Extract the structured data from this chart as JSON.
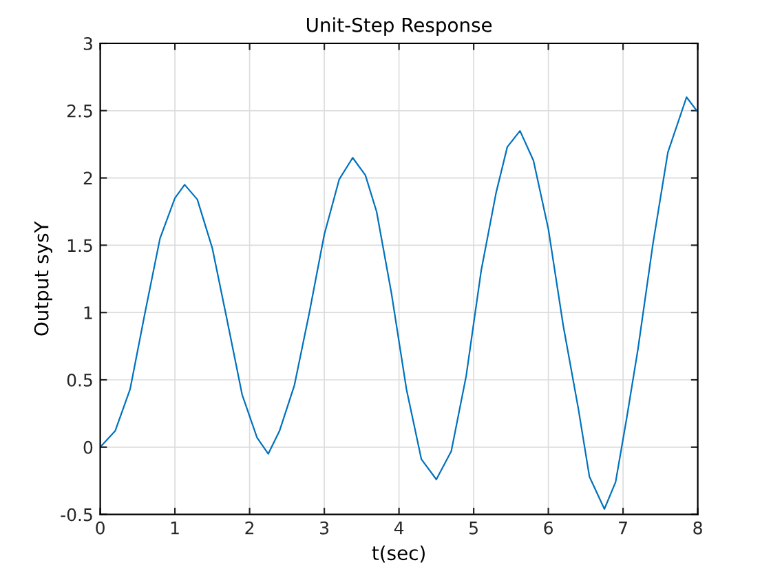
{
  "chart_data": {
    "type": "line",
    "title": "Unit-Step Response",
    "xlabel": "t(sec)",
    "ylabel": "Output sysY",
    "x": [
      0,
      0.2,
      0.4,
      0.6,
      0.8,
      1.0,
      1.13,
      1.3,
      1.5,
      1.7,
      1.9,
      2.1,
      2.25,
      2.4,
      2.6,
      2.8,
      3.0,
      3.2,
      3.38,
      3.55,
      3.7,
      3.9,
      4.1,
      4.3,
      4.5,
      4.7,
      4.9,
      5.1,
      5.3,
      5.45,
      5.62,
      5.8,
      6.0,
      6.2,
      6.4,
      6.55,
      6.75,
      6.9,
      7.05,
      7.2,
      7.4,
      7.6,
      7.85,
      8.0
    ],
    "series": [
      {
        "color": "#0072bd",
        "values": [
          0,
          0.12,
          0.43,
          1.0,
          1.55,
          1.85,
          1.95,
          1.84,
          1.48,
          0.94,
          0.39,
          0.07,
          -0.05,
          0.12,
          0.46,
          1.0,
          1.58,
          1.99,
          2.15,
          2.02,
          1.75,
          1.14,
          0.43,
          -0.09,
          -0.24,
          -0.03,
          0.53,
          1.31,
          1.89,
          2.23,
          2.35,
          2.13,
          1.62,
          0.9,
          0.29,
          -0.22,
          -0.46,
          -0.26,
          0.22,
          0.73,
          1.51,
          2.19,
          2.6,
          2.49
        ]
      }
    ],
    "xlim": [
      0,
      8
    ],
    "ylim": [
      -0.5,
      3
    ],
    "xticks": [
      0,
      1,
      2,
      3,
      4,
      5,
      6,
      7,
      8
    ],
    "yticks": [
      -0.5,
      0,
      0.5,
      1,
      1.5,
      2,
      2.5,
      3
    ],
    "grid": true
  }
}
